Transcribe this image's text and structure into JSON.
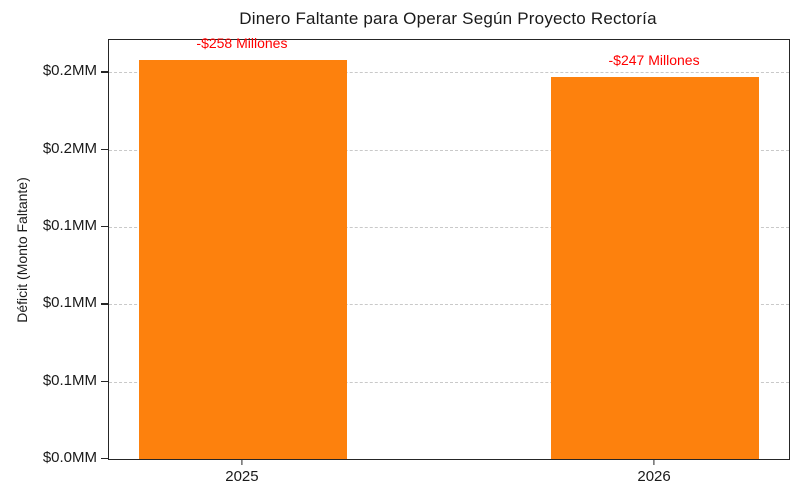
{
  "chart_data": {
    "type": "bar",
    "title": "Dinero Faltante para Operar Según Proyecto Rectoría",
    "ylabel": "Déficit (Monto Faltante)",
    "xlabel": "",
    "categories": [
      "2025",
      "2026"
    ],
    "values": [
      258000000,
      247000000
    ],
    "bar_labels": [
      "-$258 Millones",
      "-$247 Millones"
    ],
    "bar_color": "#fd810d",
    "bar_label_color": "#ff0000",
    "y_ticks": [
      0,
      50000000,
      100000000,
      150000000,
      200000000,
      250000000
    ],
    "y_tick_labels": [
      "$0.0MM",
      "$0.1MM",
      "$0.1MM",
      "$0.1MM",
      "$0.2MM",
      "$0.2MM"
    ],
    "ylim": [
      0,
      270900000
    ],
    "grid": "horizontal-dashed",
    "legend": "none"
  }
}
